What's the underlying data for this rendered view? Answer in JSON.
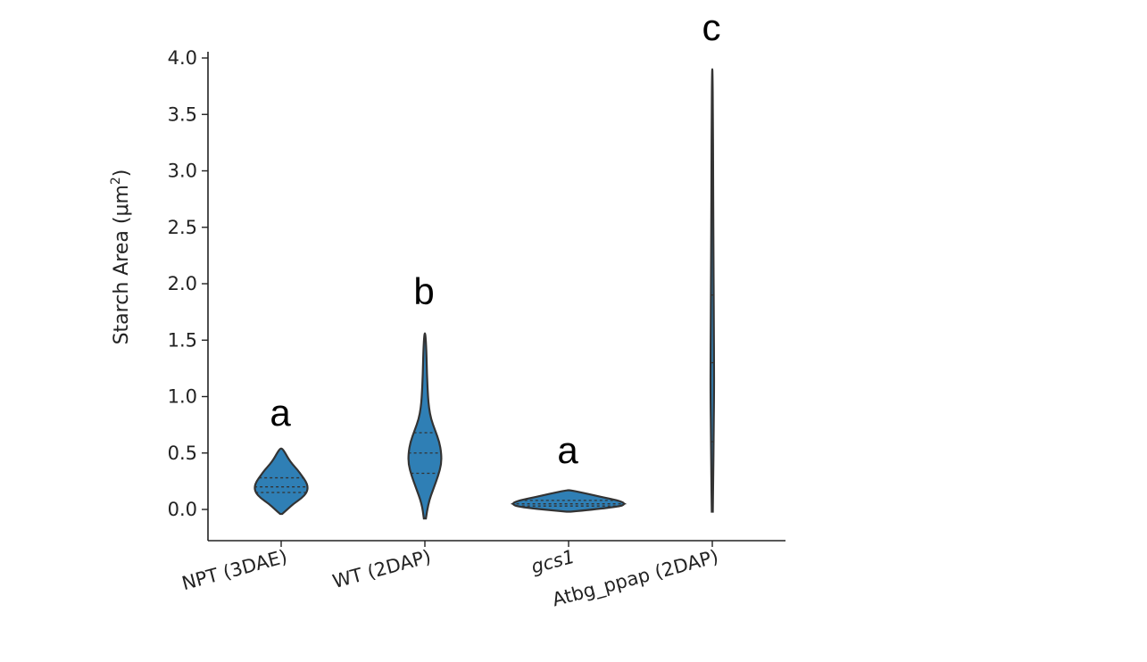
{
  "chart_data": {
    "type": "violin",
    "ylabel": "Starch Area (μm²)",
    "ylabel_main": "Starch Area (μm",
    "ylabel_sup": "2",
    "ylabel_close": ")",
    "ylim": [
      -0.28,
      4.05
    ],
    "yticks": [
      "0.0",
      "0.5",
      "1.0",
      "1.5",
      "2.0",
      "2.5",
      "3.0",
      "3.5",
      "4.0"
    ],
    "ytick_values": [
      0,
      0.5,
      1.0,
      1.5,
      2.0,
      2.5,
      3.0,
      3.5,
      4.0
    ],
    "fill_color": "#2f7fb5",
    "categories": [
      {
        "label": "NPT (3DAE)",
        "italic": false,
        "significance": "a",
        "min": -0.04,
        "max": 0.54,
        "quartiles": [
          0.15,
          0.2,
          0.28
        ],
        "profile": [
          [
            -0.04,
            0.01
          ],
          [
            0.0,
            0.06
          ],
          [
            0.05,
            0.12
          ],
          [
            0.1,
            0.2
          ],
          [
            0.15,
            0.25
          ],
          [
            0.2,
            0.26
          ],
          [
            0.25,
            0.24
          ],
          [
            0.3,
            0.2
          ],
          [
            0.35,
            0.16
          ],
          [
            0.4,
            0.11
          ],
          [
            0.45,
            0.07
          ],
          [
            0.5,
            0.04
          ],
          [
            0.54,
            0.01
          ]
        ]
      },
      {
        "label": "WT (2DAP)",
        "italic": false,
        "significance": "b",
        "min": -0.08,
        "max": 1.56,
        "quartiles": [
          0.32,
          0.5,
          0.68
        ],
        "profile": [
          [
            -0.08,
            0.01
          ],
          [
            0.05,
            0.03
          ],
          [
            0.2,
            0.09
          ],
          [
            0.3,
            0.13
          ],
          [
            0.4,
            0.16
          ],
          [
            0.5,
            0.16
          ],
          [
            0.6,
            0.14
          ],
          [
            0.7,
            0.1
          ],
          [
            0.8,
            0.06
          ],
          [
            0.9,
            0.04
          ],
          [
            1.0,
            0.03
          ],
          [
            1.2,
            0.02
          ],
          [
            1.4,
            0.015
          ],
          [
            1.56,
            0.005
          ]
        ]
      },
      {
        "label": "gcs1",
        "italic": true,
        "significance": "a",
        "min": -0.02,
        "max": 0.17,
        "quartiles": [
          0.03,
          0.05,
          0.08
        ],
        "profile": [
          [
            -0.02,
            0.02
          ],
          [
            0.02,
            0.48
          ],
          [
            0.05,
            0.56
          ],
          [
            0.08,
            0.48
          ],
          [
            0.11,
            0.32
          ],
          [
            0.14,
            0.18
          ],
          [
            0.17,
            0.02
          ]
        ]
      },
      {
        "label": "Atbg_ppap  (2DAP)",
        "italic": false,
        "significance": "c",
        "min": -0.02,
        "max": 3.9,
        "quartiles": [
          0.6,
          1.3,
          1.9
        ],
        "profile": [
          [
            -0.02,
            0.005
          ],
          [
            0.3,
            0.01
          ],
          [
            0.6,
            0.012
          ],
          [
            1.0,
            0.017
          ],
          [
            1.3,
            0.017
          ],
          [
            1.6,
            0.015
          ],
          [
            2.0,
            0.013
          ],
          [
            2.5,
            0.01
          ],
          [
            3.0,
            0.008
          ],
          [
            3.5,
            0.006
          ],
          [
            3.9,
            0.002
          ]
        ]
      }
    ],
    "grid": false,
    "legend": "none"
  }
}
